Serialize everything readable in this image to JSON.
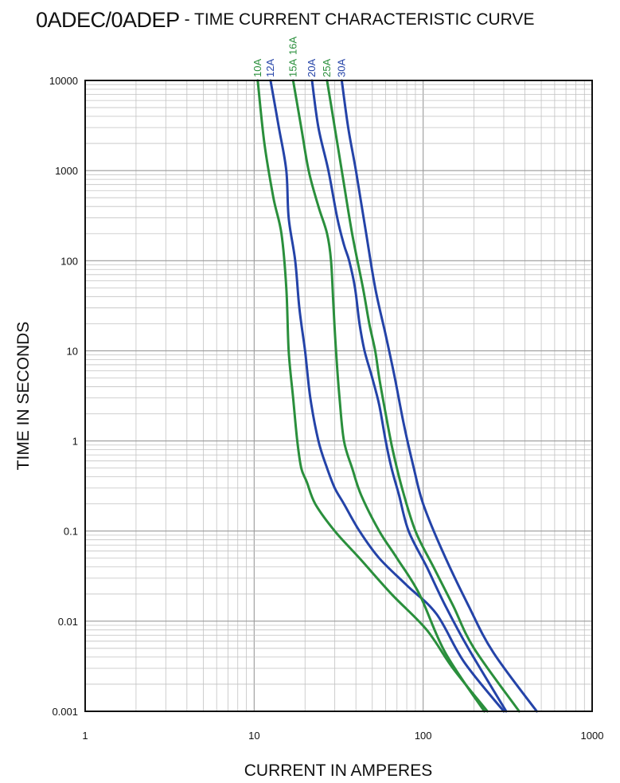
{
  "chart_data": {
    "type": "line",
    "title": "0ADEC/0ADEP",
    "subtitle": "- TIME CURRENT CHARACTERISTIC CURVE",
    "xlabel": "CURRENT IN AMPERES",
    "ylabel": "TIME IN SECONDS",
    "x_scale": "log",
    "y_scale": "log",
    "xlim": [
      1,
      1000
    ],
    "ylim": [
      0.001,
      10000
    ],
    "x_ticks": [
      "1",
      "10",
      "100",
      "1000"
    ],
    "y_ticks": [
      "0.001",
      "0.01",
      "0.1",
      "1",
      "10",
      "100",
      "1000",
      "10000"
    ],
    "grid": true,
    "legend": "labels above plot",
    "colors": {
      "green": "#2a8f3c",
      "blue": "#2443a8"
    },
    "series": [
      {
        "name": "10A",
        "color": "#2a8f3c",
        "points": [
          [
            10.5,
            10000
          ],
          [
            11.5,
            2000
          ],
          [
            13.0,
            500
          ],
          [
            14.5,
            200
          ],
          [
            15.5,
            50
          ],
          [
            16.0,
            10
          ],
          [
            17.0,
            3
          ],
          [
            18.0,
            1
          ],
          [
            19.0,
            0.5
          ],
          [
            20.5,
            0.35
          ],
          [
            23.0,
            0.2
          ],
          [
            30.0,
            0.1
          ],
          [
            42.0,
            0.05
          ],
          [
            65.0,
            0.02
          ],
          [
            105.0,
            0.008
          ],
          [
            150.0,
            0.003
          ],
          [
            240.0,
            0.001
          ]
        ]
      },
      {
        "name": "12A",
        "color": "#2443a8",
        "points": [
          [
            12.5,
            10000
          ],
          [
            14.0,
            3000
          ],
          [
            15.5,
            1000
          ],
          [
            16.0,
            300
          ],
          [
            17.5,
            100
          ],
          [
            18.5,
            30
          ],
          [
            20.0,
            10
          ],
          [
            21.5,
            3
          ],
          [
            24.0,
            1
          ],
          [
            27.0,
            0.5
          ],
          [
            30.0,
            0.3
          ],
          [
            34.0,
            0.2
          ],
          [
            42.0,
            0.1
          ],
          [
            55.0,
            0.05
          ],
          [
            80.0,
            0.025
          ],
          [
            120.0,
            0.012
          ],
          [
            175.0,
            0.0035
          ],
          [
            300.0,
            0.001
          ]
        ]
      },
      {
        "name": "15A",
        "color": "#2a8f3c",
        "points": [
          [
            17.0,
            10000
          ],
          [
            19.0,
            3000
          ],
          [
            21.0,
            1000
          ],
          [
            24.0,
            400
          ],
          [
            27.0,
            200
          ],
          [
            28.5,
            100
          ],
          [
            29.5,
            30
          ],
          [
            30.5,
            10
          ],
          [
            32.0,
            3
          ],
          [
            34.0,
            1
          ],
          [
            38.0,
            0.5
          ],
          [
            43.0,
            0.25
          ],
          [
            55.0,
            0.1
          ],
          [
            70.0,
            0.05
          ],
          [
            95.0,
            0.02
          ],
          [
            135.0,
            0.0045
          ],
          [
            230.0,
            0.001
          ]
        ]
      },
      {
        "name": "20A",
        "color": "#2443a8",
        "points": [
          [
            22.0,
            10000
          ],
          [
            24.0,
            3000
          ],
          [
            27.5,
            1000
          ],
          [
            31.0,
            300
          ],
          [
            34.0,
            150
          ],
          [
            36.5,
            100
          ],
          [
            39.5,
            50
          ],
          [
            42.0,
            20
          ],
          [
            45.0,
            10
          ],
          [
            50.0,
            5
          ],
          [
            55.0,
            2.5
          ],
          [
            60.0,
            1
          ],
          [
            65.0,
            0.5
          ],
          [
            72.0,
            0.25
          ],
          [
            82.0,
            0.1
          ],
          [
            105.0,
            0.04
          ],
          [
            135.0,
            0.015
          ],
          [
            185.0,
            0.005
          ],
          [
            310.0,
            0.001
          ]
        ]
      },
      {
        "name": "25A",
        "color": "#2a8f3c",
        "points": [
          [
            27.0,
            10000
          ],
          [
            30.0,
            3000
          ],
          [
            33.0,
            1000
          ],
          [
            38.0,
            200
          ],
          [
            44.0,
            50
          ],
          [
            48.0,
            20
          ],
          [
            52.0,
            10
          ],
          [
            55.0,
            5
          ],
          [
            60.0,
            2
          ],
          [
            66.0,
            0.8
          ],
          [
            75.0,
            0.3
          ],
          [
            90.0,
            0.1
          ],
          [
            115.0,
            0.04
          ],
          [
            150.0,
            0.015
          ],
          [
            200.0,
            0.005
          ],
          [
            370.0,
            0.001
          ]
        ]
      },
      {
        "name": "30A",
        "color": "#2443a8",
        "points": [
          [
            33.0,
            10000
          ],
          [
            36.0,
            3000
          ],
          [
            40.0,
            1000
          ],
          [
            46.0,
            200
          ],
          [
            52.0,
            50
          ],
          [
            60.0,
            15
          ],
          [
            68.0,
            5
          ],
          [
            77.0,
            1.5
          ],
          [
            88.0,
            0.5
          ],
          [
            100.0,
            0.2
          ],
          [
            130.0,
            0.06
          ],
          [
            185.0,
            0.015
          ],
          [
            260.0,
            0.0045
          ],
          [
            470.0,
            0.001
          ]
        ]
      }
    ],
    "series_label_extra": {
      "text": "16A",
      "color": "#2a8f3c"
    }
  }
}
